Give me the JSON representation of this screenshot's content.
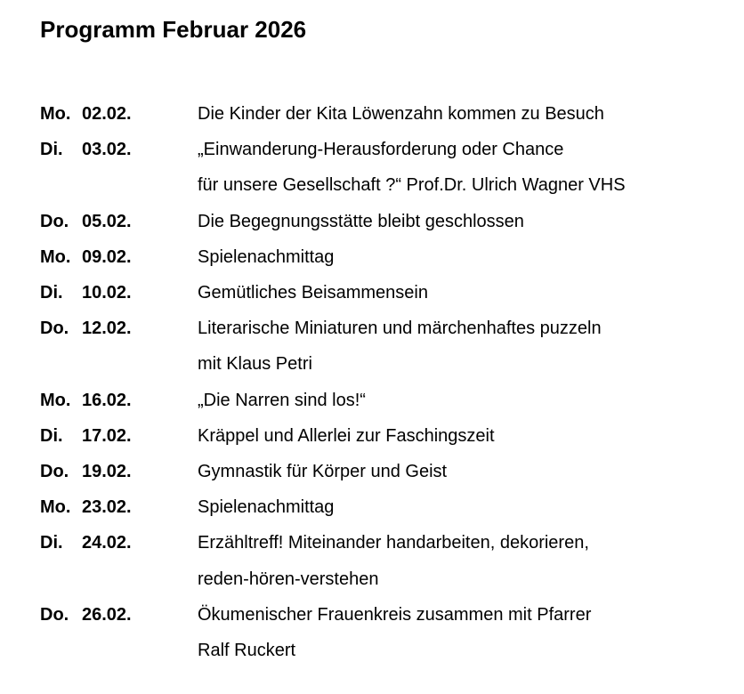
{
  "title": "Programm Februar 2026",
  "entries": [
    {
      "day": "Mo.",
      "date": "02.02.",
      "lines": [
        "Die Kinder der Kita Löwenzahn kommen zu Besuch"
      ]
    },
    {
      "day": "Di.",
      "date": "03.02.",
      "lines": [
        "„Einwanderung-Herausforderung oder Chance",
        "für unsere Gesellschaft ?“ Prof.Dr. Ulrich Wagner VHS"
      ]
    },
    {
      "day": "Do.",
      "date": "05.02.",
      "lines": [
        "Die Begegnungsstätte bleibt geschlossen"
      ]
    },
    {
      "day": "Mo.",
      "date": "09.02.",
      "lines": [
        "Spielenachmittag"
      ]
    },
    {
      "day": "Di.",
      "date": "10.02.",
      "lines": [
        "Gemütliches Beisammensein"
      ]
    },
    {
      "day": "Do.",
      "date": "12.02.",
      "lines": [
        "Literarische Miniaturen und märchenhaftes puzzeln",
        "mit Klaus Petri"
      ]
    },
    {
      "day": "Mo.",
      "date": "16.02.",
      "lines": [
        "„Die Narren sind los!“"
      ]
    },
    {
      "day": "Di.",
      "date": "17.02.",
      "lines": [
        "Kräppel und Allerlei zur Faschingszeit"
      ]
    },
    {
      "day": "Do.",
      "date": "19.02.",
      "lines": [
        "Gymnastik für Körper und Geist"
      ]
    },
    {
      "day": "Mo.",
      "date": "23.02.",
      "lines": [
        "Spielenachmittag"
      ]
    },
    {
      "day": "Di.",
      "date": "24.02.",
      "lines": [
        "Erzähltreff! Miteinander handarbeiten, dekorieren,",
        "reden-hören-verstehen"
      ]
    },
    {
      "day": "Do.",
      "date": "26.02.",
      "lines": [
        "Ökumenischer Frauenkreis zusammen mit Pfarrer",
        "Ralf Ruckert"
      ]
    }
  ]
}
